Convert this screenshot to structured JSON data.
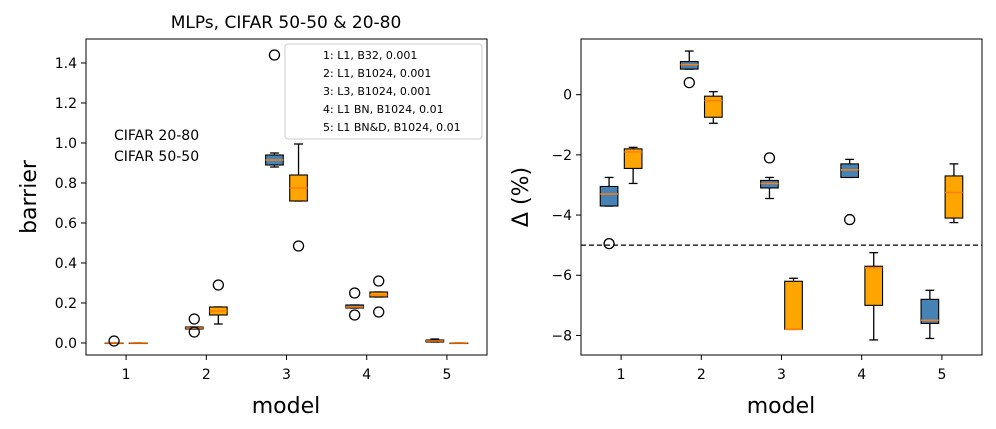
{
  "chart_data": [
    {
      "type": "box",
      "title": "MLPs, CIFAR 50-50 & 20-80",
      "xlabel": "model",
      "ylabel": "barrier",
      "xlim": [
        0.5,
        5.5
      ],
      "ylim": [
        -0.06,
        1.52
      ],
      "xticks": [
        1,
        2,
        3,
        4,
        5
      ],
      "xtick_labels": [
        "1",
        "2",
        "3",
        "4",
        "5"
      ],
      "yticks": [
        0.0,
        0.2,
        0.4,
        0.6,
        0.8,
        1.0,
        1.2,
        1.4
      ],
      "ytick_labels": [
        "0.0",
        "0.2",
        "0.4",
        "0.6",
        "0.8",
        "1.0",
        "1.2",
        "1.4"
      ],
      "series_labels": [
        {
          "text": "CIFAR 20-80",
          "color": "#ffa500"
        },
        {
          "text": "CIFAR 50-50",
          "color": "#4682b4"
        }
      ],
      "legend_entries": [
        "1: L1, B32, 0.001",
        "2: L1, B1024, 0.001",
        "3: L3, B1024, 0.001",
        "4: L1 BN, B1024, 0.01",
        "5: L1 BN&D, B1024, 0.01"
      ],
      "series": [
        {
          "name": "CIFAR 50-50",
          "color": "#4682b4",
          "offset": -0.15,
          "boxes": [
            {
              "model": 1,
              "q1": 0.0,
              "median": 0.0,
              "q3": 0.0,
              "whislo": 0.0,
              "whishi": 0.0,
              "fliers": [
                0.01
              ]
            },
            {
              "model": 2,
              "q1": 0.07,
              "median": 0.075,
              "q3": 0.08,
              "whislo": 0.07,
              "whishi": 0.08,
              "fliers": [
                0.12,
                0.055
              ]
            },
            {
              "model": 3,
              "q1": 0.89,
              "median": 0.915,
              "q3": 0.94,
              "whislo": 0.88,
              "whishi": 0.95,
              "fliers": [
                1.44
              ]
            },
            {
              "model": 4,
              "q1": 0.175,
              "median": 0.18,
              "q3": 0.19,
              "whislo": 0.175,
              "whishi": 0.19,
              "fliers": [
                0.25,
                0.14
              ]
            },
            {
              "model": 5,
              "q1": 0.005,
              "median": 0.01,
              "q3": 0.015,
              "whislo": 0.005,
              "whishi": 0.02,
              "fliers": []
            }
          ]
        },
        {
          "name": "CIFAR 20-80",
          "color": "#ffa500",
          "offset": 0.15,
          "boxes": [
            {
              "model": 1,
              "q1": 0.0,
              "median": 0.0,
              "q3": 0.0,
              "whislo": 0.0,
              "whishi": 0.0,
              "fliers": []
            },
            {
              "model": 2,
              "q1": 0.14,
              "median": 0.16,
              "q3": 0.18,
              "whislo": 0.095,
              "whishi": 0.18,
              "fliers": [
                0.29
              ]
            },
            {
              "model": 3,
              "q1": 0.71,
              "median": 0.775,
              "q3": 0.84,
              "whislo": 0.71,
              "whishi": 0.995,
              "fliers": [
                0.485
              ]
            },
            {
              "model": 4,
              "q1": 0.23,
              "median": 0.24,
              "q3": 0.255,
              "whislo": 0.23,
              "whishi": 0.255,
              "fliers": [
                0.31,
                0.155
              ]
            },
            {
              "model": 5,
              "q1": 0.0,
              "median": 0.0,
              "q3": 0.0,
              "whislo": 0.0,
              "whishi": 0.0,
              "fliers": []
            }
          ]
        }
      ]
    },
    {
      "type": "box",
      "title": "",
      "xlabel": "model",
      "ylabel": "Δ (%)",
      "xlim": [
        0.5,
        5.5
      ],
      "ylim": [
        -8.65,
        1.85
      ],
      "xticks": [
        1,
        2,
        3,
        4,
        5
      ],
      "xtick_labels": [
        "1",
        "2",
        "3",
        "4",
        "5"
      ],
      "yticks": [
        -8,
        -6,
        -4,
        -2,
        0
      ],
      "ytick_labels": [
        "−8",
        "−6",
        "−4",
        "−2",
        "0"
      ],
      "hline": -5,
      "series": [
        {
          "name": "CIFAR 50-50",
          "color": "#4682b4",
          "offset": -0.15,
          "boxes": [
            {
              "model": 1,
              "q1": -3.7,
              "median": -3.3,
              "q3": -3.05,
              "whislo": -3.7,
              "whishi": -2.75,
              "fliers": [
                -4.95
              ]
            },
            {
              "model": 2,
              "q1": 0.85,
              "median": 1.0,
              "q3": 1.1,
              "whislo": 0.85,
              "whishi": 1.45,
              "fliers": [
                0.4
              ]
            },
            {
              "model": 3,
              "q1": -3.1,
              "median": -2.95,
              "q3": -2.85,
              "whislo": -3.45,
              "whishi": -2.75,
              "fliers": [
                -2.1
              ]
            },
            {
              "model": 4,
              "q1": -2.75,
              "median": -2.5,
              "q3": -2.3,
              "whislo": -2.75,
              "whishi": -2.15,
              "fliers": [
                -4.15
              ]
            },
            {
              "model": 5,
              "q1": -7.6,
              "median": -7.5,
              "q3": -6.8,
              "whislo": -8.1,
              "whishi": -6.5,
              "fliers": []
            }
          ]
        },
        {
          "name": "CIFAR 20-80",
          "color": "#ffa500",
          "offset": 0.15,
          "boxes": [
            {
              "model": 1,
              "q1": -2.45,
              "median": -1.9,
              "q3": -1.8,
              "whislo": -2.95,
              "whishi": -1.75,
              "fliers": []
            },
            {
              "model": 2,
              "q1": -0.75,
              "median": -0.2,
              "q3": -0.05,
              "whislo": -0.95,
              "whishi": 0.1,
              "fliers": []
            },
            {
              "model": 3,
              "q1": -7.8,
              "median": -7.8,
              "q3": -6.2,
              "whislo": -7.8,
              "whishi": -6.1,
              "fliers": []
            },
            {
              "model": 4,
              "q1": -7.0,
              "median": -5.75,
              "q3": -5.7,
              "whislo": -8.15,
              "whishi": -5.25,
              "fliers": []
            },
            {
              "model": 5,
              "q1": -4.1,
              "median": -3.25,
              "q3": -2.7,
              "whislo": -4.25,
              "whishi": -2.3,
              "fliers": []
            }
          ]
        }
      ]
    }
  ]
}
